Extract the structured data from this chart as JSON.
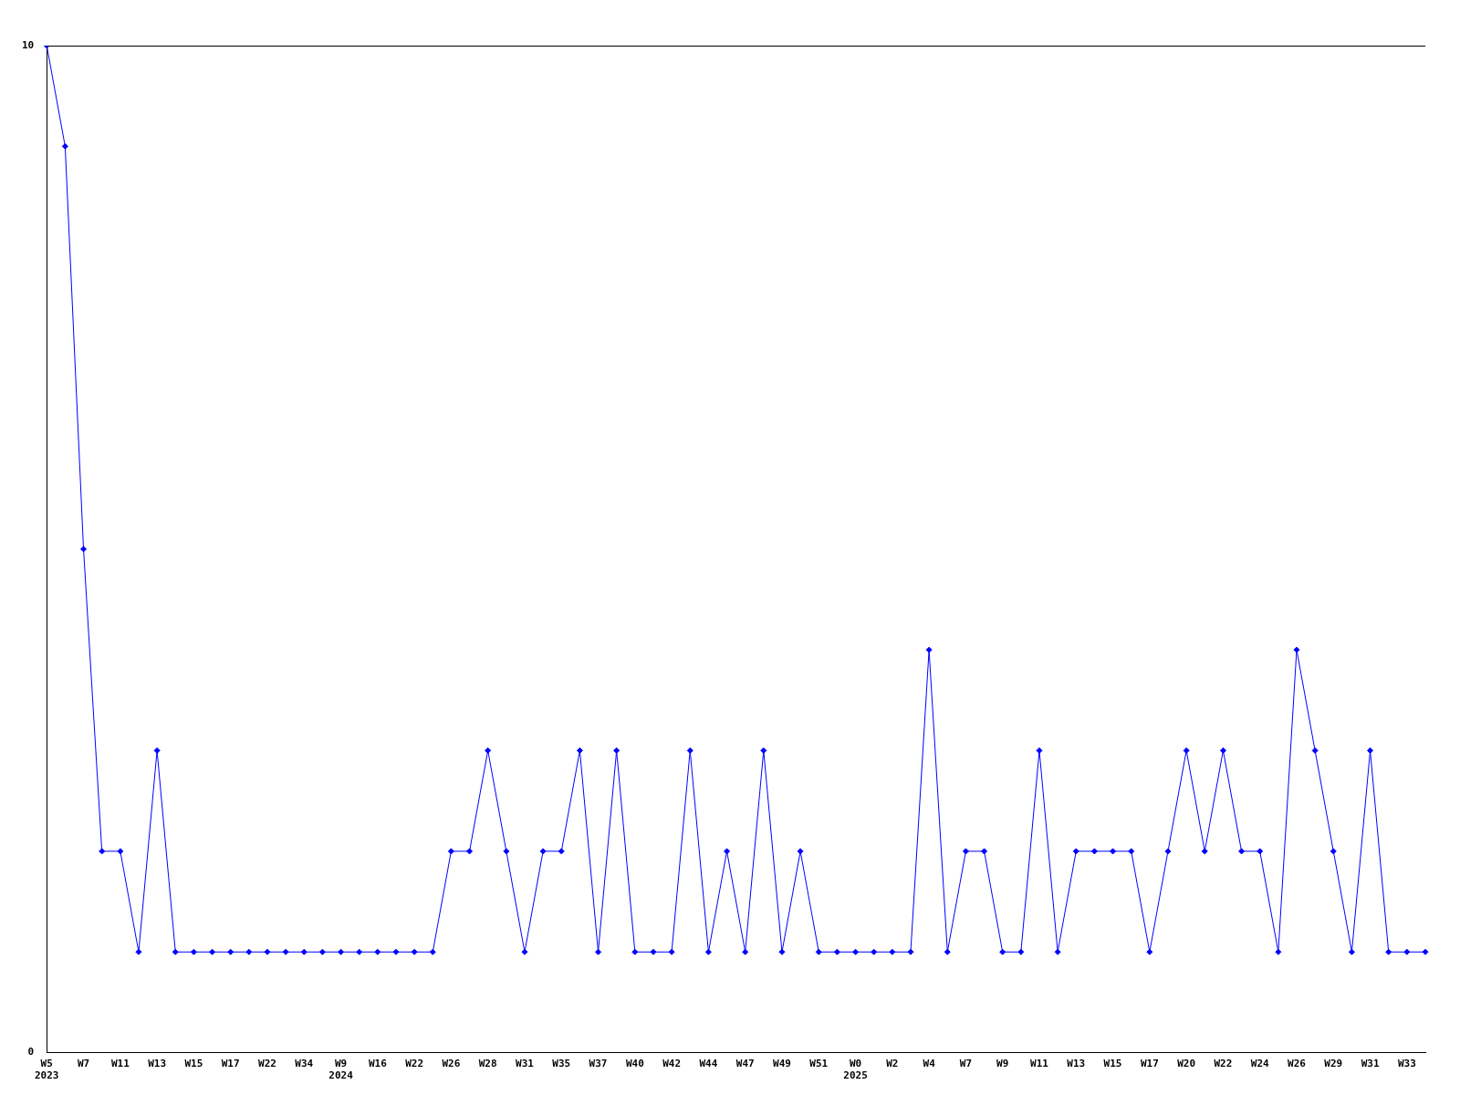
{
  "chart_data": {
    "type": "line",
    "categories": [
      "W5\n2023",
      null,
      "W7",
      null,
      "W11",
      null,
      "W13",
      null,
      "W15",
      null,
      "W17",
      null,
      "W22",
      null,
      "W34",
      null,
      "W9\n2024",
      null,
      "W16",
      null,
      "W22",
      null,
      "W26",
      null,
      "W28",
      null,
      "W31",
      null,
      "W35",
      null,
      "W37",
      null,
      "W40",
      null,
      "W42",
      null,
      "W44",
      null,
      "W47",
      null,
      "W49",
      null,
      "W51",
      null,
      "W0\n2025",
      null,
      "W2",
      null,
      "W4",
      null,
      "W7",
      null,
      "W9",
      null,
      "W11",
      null,
      "W13",
      null,
      "W15",
      null,
      "W17",
      null,
      "W20",
      null,
      "W22",
      null,
      "W24",
      null,
      "W26",
      null,
      "W29",
      null,
      "W31",
      null,
      "W33",
      null
    ],
    "series": [
      {
        "color": "#0000ff",
        "values": [
          10,
          9,
          5,
          2,
          2,
          1,
          3,
          1,
          1,
          1,
          1,
          1,
          1,
          1,
          1,
          1,
          1,
          1,
          1,
          1,
          1,
          1,
          2,
          2,
          3,
          2,
          1,
          2,
          2,
          3,
          1,
          3,
          1,
          1,
          1,
          3,
          1,
          2,
          1,
          3,
          1,
          2,
          1,
          1,
          1,
          1,
          1,
          1,
          4,
          1,
          2,
          2,
          1,
          1,
          3,
          1,
          2,
          2,
          2,
          2,
          1,
          2,
          3,
          2,
          3,
          2,
          2,
          1,
          4,
          3,
          2,
          1,
          3,
          1,
          1,
          1
        ]
      }
    ],
    "ylim": [
      0,
      10
    ],
    "yticks": [
      0,
      10
    ],
    "legend": false,
    "marker": "diamond",
    "line_style": "solid"
  }
}
